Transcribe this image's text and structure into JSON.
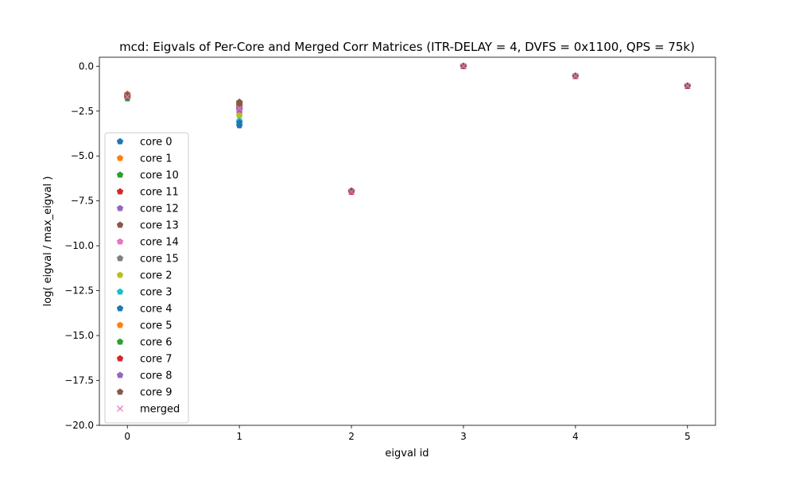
{
  "chart_data": {
    "type": "scatter",
    "title": "mcd: Eigvals of Per-Core and Merged Corr Matrices (ITR-DELAY = 4, DVFS = 0x1100, QPS = 75k)",
    "xlabel": "eigval id",
    "ylabel": "log( eigval / max_eigval )",
    "xlim": [
      -0.25,
      5.25
    ],
    "ylim": [
      -20,
      0.5
    ],
    "xticks": [
      0,
      1,
      2,
      3,
      4,
      5
    ],
    "xtick_labels": [
      "0",
      "1",
      "2",
      "3",
      "4",
      "5"
    ],
    "yticks": [
      0,
      -2.5,
      -5,
      -7.5,
      -10,
      -12.5,
      -15,
      -17.5,
      -20
    ],
    "ytick_labels": [
      "0.0",
      "−2.5",
      "−5.0",
      "−7.5",
      "−10.0",
      "−12.5",
      "−15.0",
      "−17.5",
      "−20.0"
    ],
    "grid": false,
    "legend_position": "lower-left",
    "x": [
      0,
      1,
      2,
      3,
      4,
      5
    ],
    "series": [
      {
        "name": "core 0",
        "marker": "pentagon",
        "color": "#1f77b4",
        "values": [
          -1.7,
          -3.3,
          -6.95,
          0.0,
          -0.55,
          -1.1
        ]
      },
      {
        "name": "core 1",
        "marker": "pentagon",
        "color": "#ff7f0e",
        "values": [
          -1.55,
          -2.3,
          -6.95,
          0.0,
          -0.55,
          -1.1
        ]
      },
      {
        "name": "core 10",
        "marker": "pentagon",
        "color": "#2ca02c",
        "values": [
          -1.8,
          -2.1,
          -6.95,
          0.0,
          -0.55,
          -1.1
        ]
      },
      {
        "name": "core 11",
        "marker": "pentagon",
        "color": "#d62728",
        "values": [
          -1.65,
          -2.2,
          -7.0,
          0.0,
          -0.55,
          -1.1
        ]
      },
      {
        "name": "core 12",
        "marker": "pentagon",
        "color": "#9467bd",
        "values": [
          -1.7,
          -2.35,
          -6.95,
          0.0,
          -0.55,
          -1.1
        ]
      },
      {
        "name": "core 13",
        "marker": "pentagon",
        "color": "#8c564b",
        "values": [
          -1.6,
          -2.0,
          -6.95,
          0.0,
          -0.55,
          -1.1
        ]
      },
      {
        "name": "core 14",
        "marker": "pentagon",
        "color": "#e377c2",
        "values": [
          -1.7,
          -2.6,
          -6.95,
          0.0,
          -0.55,
          -1.1
        ]
      },
      {
        "name": "core 15",
        "marker": "pentagon",
        "color": "#7f7f7f",
        "values": [
          -1.6,
          -2.45,
          -6.95,
          0.0,
          -0.55,
          -1.1
        ]
      },
      {
        "name": "core 2",
        "marker": "pentagon",
        "color": "#bcbd22",
        "values": [
          -1.7,
          -2.75,
          -6.95,
          0.0,
          -0.55,
          -1.1
        ]
      },
      {
        "name": "core 3",
        "marker": "pentagon",
        "color": "#17becf",
        "values": [
          -1.65,
          -3.05,
          -6.95,
          0.0,
          -0.55,
          -1.1
        ]
      },
      {
        "name": "core 4",
        "marker": "pentagon",
        "color": "#1f77b4",
        "values": [
          -1.65,
          -3.15,
          -6.95,
          0.0,
          -0.55,
          -1.1
        ]
      },
      {
        "name": "core 5",
        "marker": "pentagon",
        "color": "#ff7f0e",
        "values": [
          -1.55,
          -2.2,
          -6.95,
          0.0,
          -0.55,
          -1.1
        ]
      },
      {
        "name": "core 6",
        "marker": "pentagon",
        "color": "#2ca02c",
        "values": [
          -1.75,
          -2.15,
          -6.95,
          0.0,
          -0.55,
          -1.1
        ]
      },
      {
        "name": "core 7",
        "marker": "pentagon",
        "color": "#d62728",
        "values": [
          -1.7,
          -2.25,
          -7.0,
          0.0,
          -0.55,
          -1.1
        ]
      },
      {
        "name": "core 8",
        "marker": "pentagon",
        "color": "#9467bd",
        "values": [
          -1.65,
          -2.4,
          -6.95,
          0.0,
          -0.55,
          -1.1
        ]
      },
      {
        "name": "core 9",
        "marker": "pentagon",
        "color": "#8c564b",
        "values": [
          -1.6,
          -2.05,
          -6.95,
          0.0,
          -0.55,
          -1.1
        ]
      },
      {
        "name": "merged",
        "marker": "x",
        "color": "#e377c2",
        "values": [
          -1.7,
          -2.35,
          -7.0,
          0.0,
          -0.55,
          -1.1
        ]
      }
    ]
  }
}
